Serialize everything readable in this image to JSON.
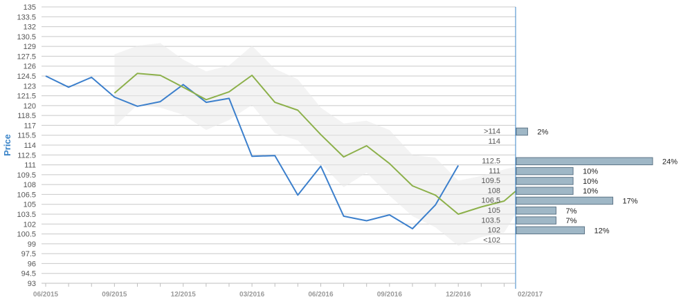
{
  "chart_data": {
    "type": "line",
    "ylabel": "Price",
    "ylim": [
      93,
      135
    ],
    "y_ticks": [
      "135",
      "133.5",
      "132",
      "130.5",
      "129",
      "127.5",
      "126",
      "124.5",
      "123",
      "121.5",
      "120",
      "118.5",
      "117",
      "115.5",
      "114",
      "112.5",
      "111",
      "109.5",
      "108",
      "106.5",
      "105",
      "103.5",
      "102",
      "100.5",
      "99",
      "97.5",
      "96",
      "94.5",
      "93"
    ],
    "x_tick_labels": [
      "06/2015",
      "09/2015",
      "12/2015",
      "03/2016",
      "06/2016",
      "09/2016",
      "12/2016",
      "02/2017"
    ],
    "x_range": [
      0,
      20.5
    ],
    "x_tick_positions": [
      0,
      3,
      6,
      9,
      12,
      15,
      18,
      20.5
    ],
    "grid": true,
    "series": [
      {
        "color": "#3b7fcc",
        "x": [
          0,
          1,
          2,
          3,
          4,
          5,
          6,
          7,
          8,
          9,
          10,
          11,
          12,
          13,
          14,
          15,
          16,
          17,
          18
        ],
        "values": [
          124.5,
          122.8,
          124.3,
          121.3,
          119.9,
          120.6,
          123.2,
          120.5,
          121.1,
          112.3,
          112.4,
          106.4,
          110.8,
          103.2,
          102.5,
          103.4,
          101.3,
          104.9,
          110.9
        ]
      },
      {
        "color": "#8cb04a",
        "x": [
          3,
          4,
          5,
          6,
          7,
          8,
          9,
          10,
          11,
          12,
          13,
          14,
          15,
          16,
          17,
          18,
          19,
          20,
          20.5
        ],
        "values": [
          121.9,
          124.9,
          124.6,
          122.8,
          120.9,
          122.1,
          124.6,
          120.5,
          119.3,
          115.6,
          112.2,
          113.9,
          111.2,
          107.8,
          106.4,
          103.5,
          104.6,
          105.5,
          107.0
        ]
      }
    ],
    "band": {
      "color": "#e9e9e9",
      "x": [
        3,
        4,
        5,
        6,
        7,
        8,
        9,
        10,
        11,
        12,
        13,
        14,
        15,
        16,
        17,
        18,
        19,
        20,
        20.5
      ],
      "upper": [
        127.8,
        129.1,
        129.5,
        127.0,
        125.2,
        126.1,
        129.1,
        125.6,
        124.0,
        119.7,
        117.3,
        117.7,
        116.3,
        112.5,
        112.1,
        108.6,
        109.3,
        110.3,
        110.7
      ],
      "lower": [
        116.8,
        120.1,
        119.7,
        118.6,
        116.3,
        117.8,
        120.1,
        115.8,
        114.7,
        111.2,
        107.6,
        109.8,
        106.3,
        103.2,
        101.5,
        98.7,
        100.0,
        100.7,
        103.5
      ]
    },
    "distribution": {
      "color": "#9fb7c6",
      "border": "#5d7486",
      "buckets": [
        {
          "label": ">114",
          "value": 2,
          "text": "2%"
        },
        {
          "label": "114",
          "value": null,
          "text": ""
        },
        {
          "label": "112.5",
          "value": 24,
          "text": "24%"
        },
        {
          "label": "111",
          "value": 10,
          "text": "10%"
        },
        {
          "label": "109.5",
          "value": 10,
          "text": "10%"
        },
        {
          "label": "108",
          "value": 10,
          "text": "10%"
        },
        {
          "label": "106.5",
          "value": 17,
          "text": "17%"
        },
        {
          "label": "105",
          "value": 7,
          "text": "7%"
        },
        {
          "label": "103.5",
          "value": 7,
          "text": "7%"
        },
        {
          "label": "102",
          "value": 12,
          "text": "12%"
        },
        {
          "label": "<102",
          "value": null,
          "text": ""
        }
      ]
    }
  }
}
